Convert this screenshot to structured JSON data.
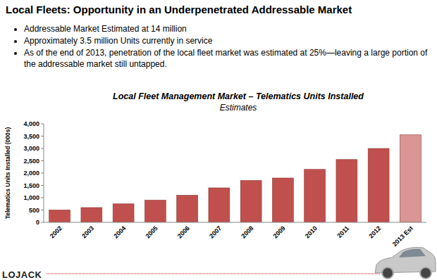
{
  "header": {
    "title": "Local Fleets: Opportunity in an Underpenetrated Addressable Market",
    "bullets": [
      "Addressable Market Estimated at 14 million",
      "Approximately 3.5 million Units currently in service",
      "As of the end of 2013, penetration of the local fleet market was estimated at 25%—leaving a large portion of the addressable market still untapped."
    ]
  },
  "logo": "LOJACK",
  "chart_data": {
    "type": "bar",
    "title": "Local Fleet Management Market – Telematics Units Installed",
    "subtitle": "Estimates",
    "y_label": "Telematics Units Installed (000s)",
    "categories": [
      "2002",
      "2003",
      "2004",
      "2005",
      "2006",
      "2007",
      "2008",
      "2009",
      "2010",
      "2011",
      "2012",
      "2013 Est"
    ],
    "values": [
      500,
      600,
      750,
      900,
      1100,
      1400,
      1700,
      1800,
      2150,
      2550,
      3000,
      3550
    ],
    "colors": [
      "#c0504d",
      "#c0504d",
      "#c0504d",
      "#c0504d",
      "#c0504d",
      "#c0504d",
      "#c0504d",
      "#c0504d",
      "#c0504d",
      "#c0504d",
      "#c0504d",
      "#d99694"
    ],
    "ylim": [
      0,
      4000
    ],
    "yticks": [
      0,
      500,
      {
        "value": 1000,
        "label": "1,000"
      },
      {
        "value": 1500,
        "label": "1,500"
      },
      {
        "value": 2000,
        "label": "2,000"
      },
      {
        "value": 2500,
        "label": "2,500"
      },
      {
        "value": 3000,
        "label": "3,000"
      },
      {
        "value": 3500,
        "label": "3,500"
      },
      {
        "value": 4000,
        "label": "4,000"
      }
    ],
    "grid": false
  }
}
